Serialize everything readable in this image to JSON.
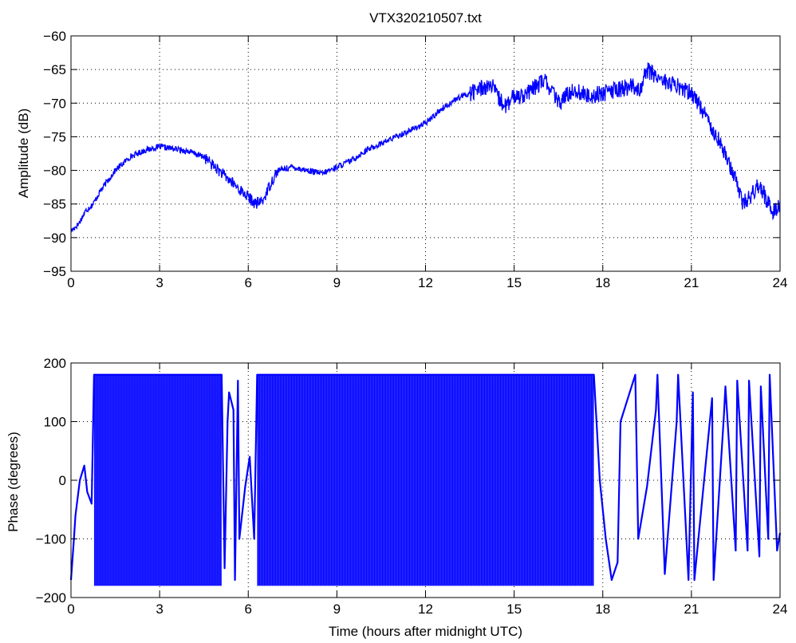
{
  "chart_data": [
    {
      "type": "line",
      "title": "VTX320210507.txt",
      "xlabel": "",
      "ylabel": "Amplitude (dB)",
      "xlim": [
        0,
        24
      ],
      "ylim": [
        -95,
        -60
      ],
      "x_ticks": [
        "0",
        "3",
        "6",
        "9",
        "12",
        "15",
        "18",
        "21",
        "24"
      ],
      "y_ticks": [
        "-95",
        "-90",
        "-85",
        "-80",
        "-75",
        "-70",
        "-65",
        "-60"
      ],
      "grid": true,
      "color": "#0000ff",
      "series": [
        {
          "x": [
            0,
            0.25,
            0.5,
            0.75,
            1,
            1.25,
            1.5,
            2,
            2.5,
            3,
            3.5,
            4,
            4.5,
            5,
            5.5,
            6,
            6.25,
            6.5,
            6.75,
            7,
            7.5,
            8,
            8.5,
            9,
            9.5,
            10,
            10.5,
            11,
            11.5,
            12,
            12.5,
            13,
            13.5,
            14,
            14.25,
            14.5,
            14.75,
            15,
            15.5,
            15.75,
            16,
            16.25,
            16.5,
            17,
            17.5,
            18,
            18.5,
            19,
            19.25,
            19.5,
            20,
            20.5,
            21,
            21.25,
            21.5,
            22,
            22.25,
            22.5,
            22.75,
            23,
            23.25,
            23.5,
            23.75,
            24
          ],
          "values": [
            -89,
            -88,
            -86,
            -85,
            -83,
            -81.5,
            -80,
            -78,
            -77,
            -76.5,
            -76.8,
            -77.2,
            -78,
            -80,
            -82,
            -84,
            -85,
            -84.5,
            -82,
            -80,
            -79.5,
            -80,
            -80.5,
            -79.5,
            -78.5,
            -77,
            -76,
            -75,
            -74,
            -73,
            -71,
            -69.5,
            -68.5,
            -67.5,
            -67.5,
            -69.5,
            -70.5,
            -69,
            -68.5,
            -67.5,
            -66.5,
            -68,
            -70,
            -68,
            -69,
            -68.5,
            -68,
            -67.5,
            -68,
            -65,
            -66.5,
            -67.5,
            -68.5,
            -70,
            -72,
            -76,
            -79,
            -81,
            -85,
            -84,
            -82,
            -84,
            -86,
            -85
          ]
        }
      ]
    },
    {
      "type": "line",
      "title": "",
      "xlabel": "Time (hours after midnight UTC)",
      "ylabel": "Phase (degrees)",
      "xlim": [
        0,
        24
      ],
      "ylim": [
        -200,
        200
      ],
      "x_ticks": [
        "0",
        "3",
        "6",
        "9",
        "12",
        "15",
        "18",
        "21",
        "24"
      ],
      "y_ticks": [
        "-200",
        "-100",
        "0",
        "100",
        "200"
      ],
      "grid": true,
      "color": "#0000ff",
      "noise_bands": [
        {
          "from": 0.78,
          "to": 5.1,
          "low": -180,
          "high": 180
        },
        {
          "from": 6.3,
          "to": 17.7,
          "low": -180,
          "high": 180
        }
      ],
      "series": [
        {
          "x": [
            0,
            0.1,
            0.15,
            0.3,
            0.45,
            0.55,
            0.7,
            0.78,
            5.1,
            5.2,
            5.3,
            5.35,
            5.5,
            5.55,
            5.65,
            5.7,
            5.9,
            6.05,
            6.2,
            6.3,
            17.7,
            17.9,
            18.1,
            18.3,
            18.5,
            18.6,
            19.1,
            19.2,
            19.5,
            19.8,
            19.85,
            20.1,
            20.5,
            20.55,
            20.9,
            21.05,
            21.1,
            21.7,
            21.75,
            22.1,
            22.15,
            22.5,
            22.55,
            22.9,
            22.95,
            23.3,
            23.35,
            23.6,
            23.65,
            23.9,
            24
          ],
          "values": [
            -170,
            -100,
            -60,
            0,
            25,
            -20,
            -40,
            180,
            180,
            -150,
            100,
            150,
            120,
            -170,
            170,
            -100,
            -10,
            40,
            -100,
            180,
            180,
            0,
            -100,
            -170,
            -140,
            100,
            180,
            -100,
            -10,
            120,
            180,
            -160,
            100,
            180,
            -170,
            150,
            -170,
            140,
            -170,
            110,
            160,
            -120,
            170,
            -120,
            170,
            -130,
            160,
            -100,
            180,
            -120,
            -90
          ]
        }
      ]
    }
  ]
}
